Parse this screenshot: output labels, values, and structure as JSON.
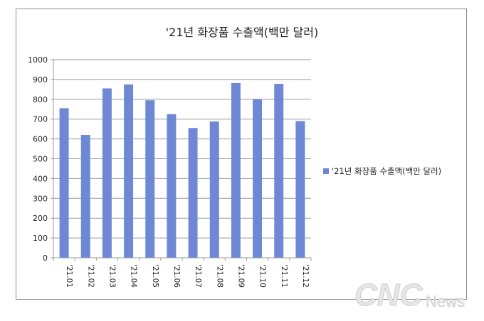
{
  "chart_data": {
    "type": "bar",
    "title": "'21년 화장품 수출액(백만 달러)",
    "categories": [
      "'21.01",
      "'21.02",
      "'21.03",
      "'21.04",
      "'21.05",
      "'21.06",
      "'21.07",
      "'21.08",
      "'21.09",
      "'21.10",
      "'21.11",
      "'21.12"
    ],
    "series": [
      {
        "name": "'21년 화장품 수출액(백만 달러)",
        "values": [
          755,
          620,
          855,
          875,
          795,
          725,
          655,
          688,
          882,
          800,
          878,
          690
        ],
        "color": "#6f88d6"
      }
    ],
    "ylim": [
      0,
      1000
    ],
    "yticks": [
      0,
      100,
      200,
      300,
      400,
      500,
      600,
      700,
      800,
      900,
      1000
    ],
    "grid": true,
    "legend_position": "right"
  },
  "watermark": {
    "brand": "CNC",
    "suffix": "News"
  }
}
